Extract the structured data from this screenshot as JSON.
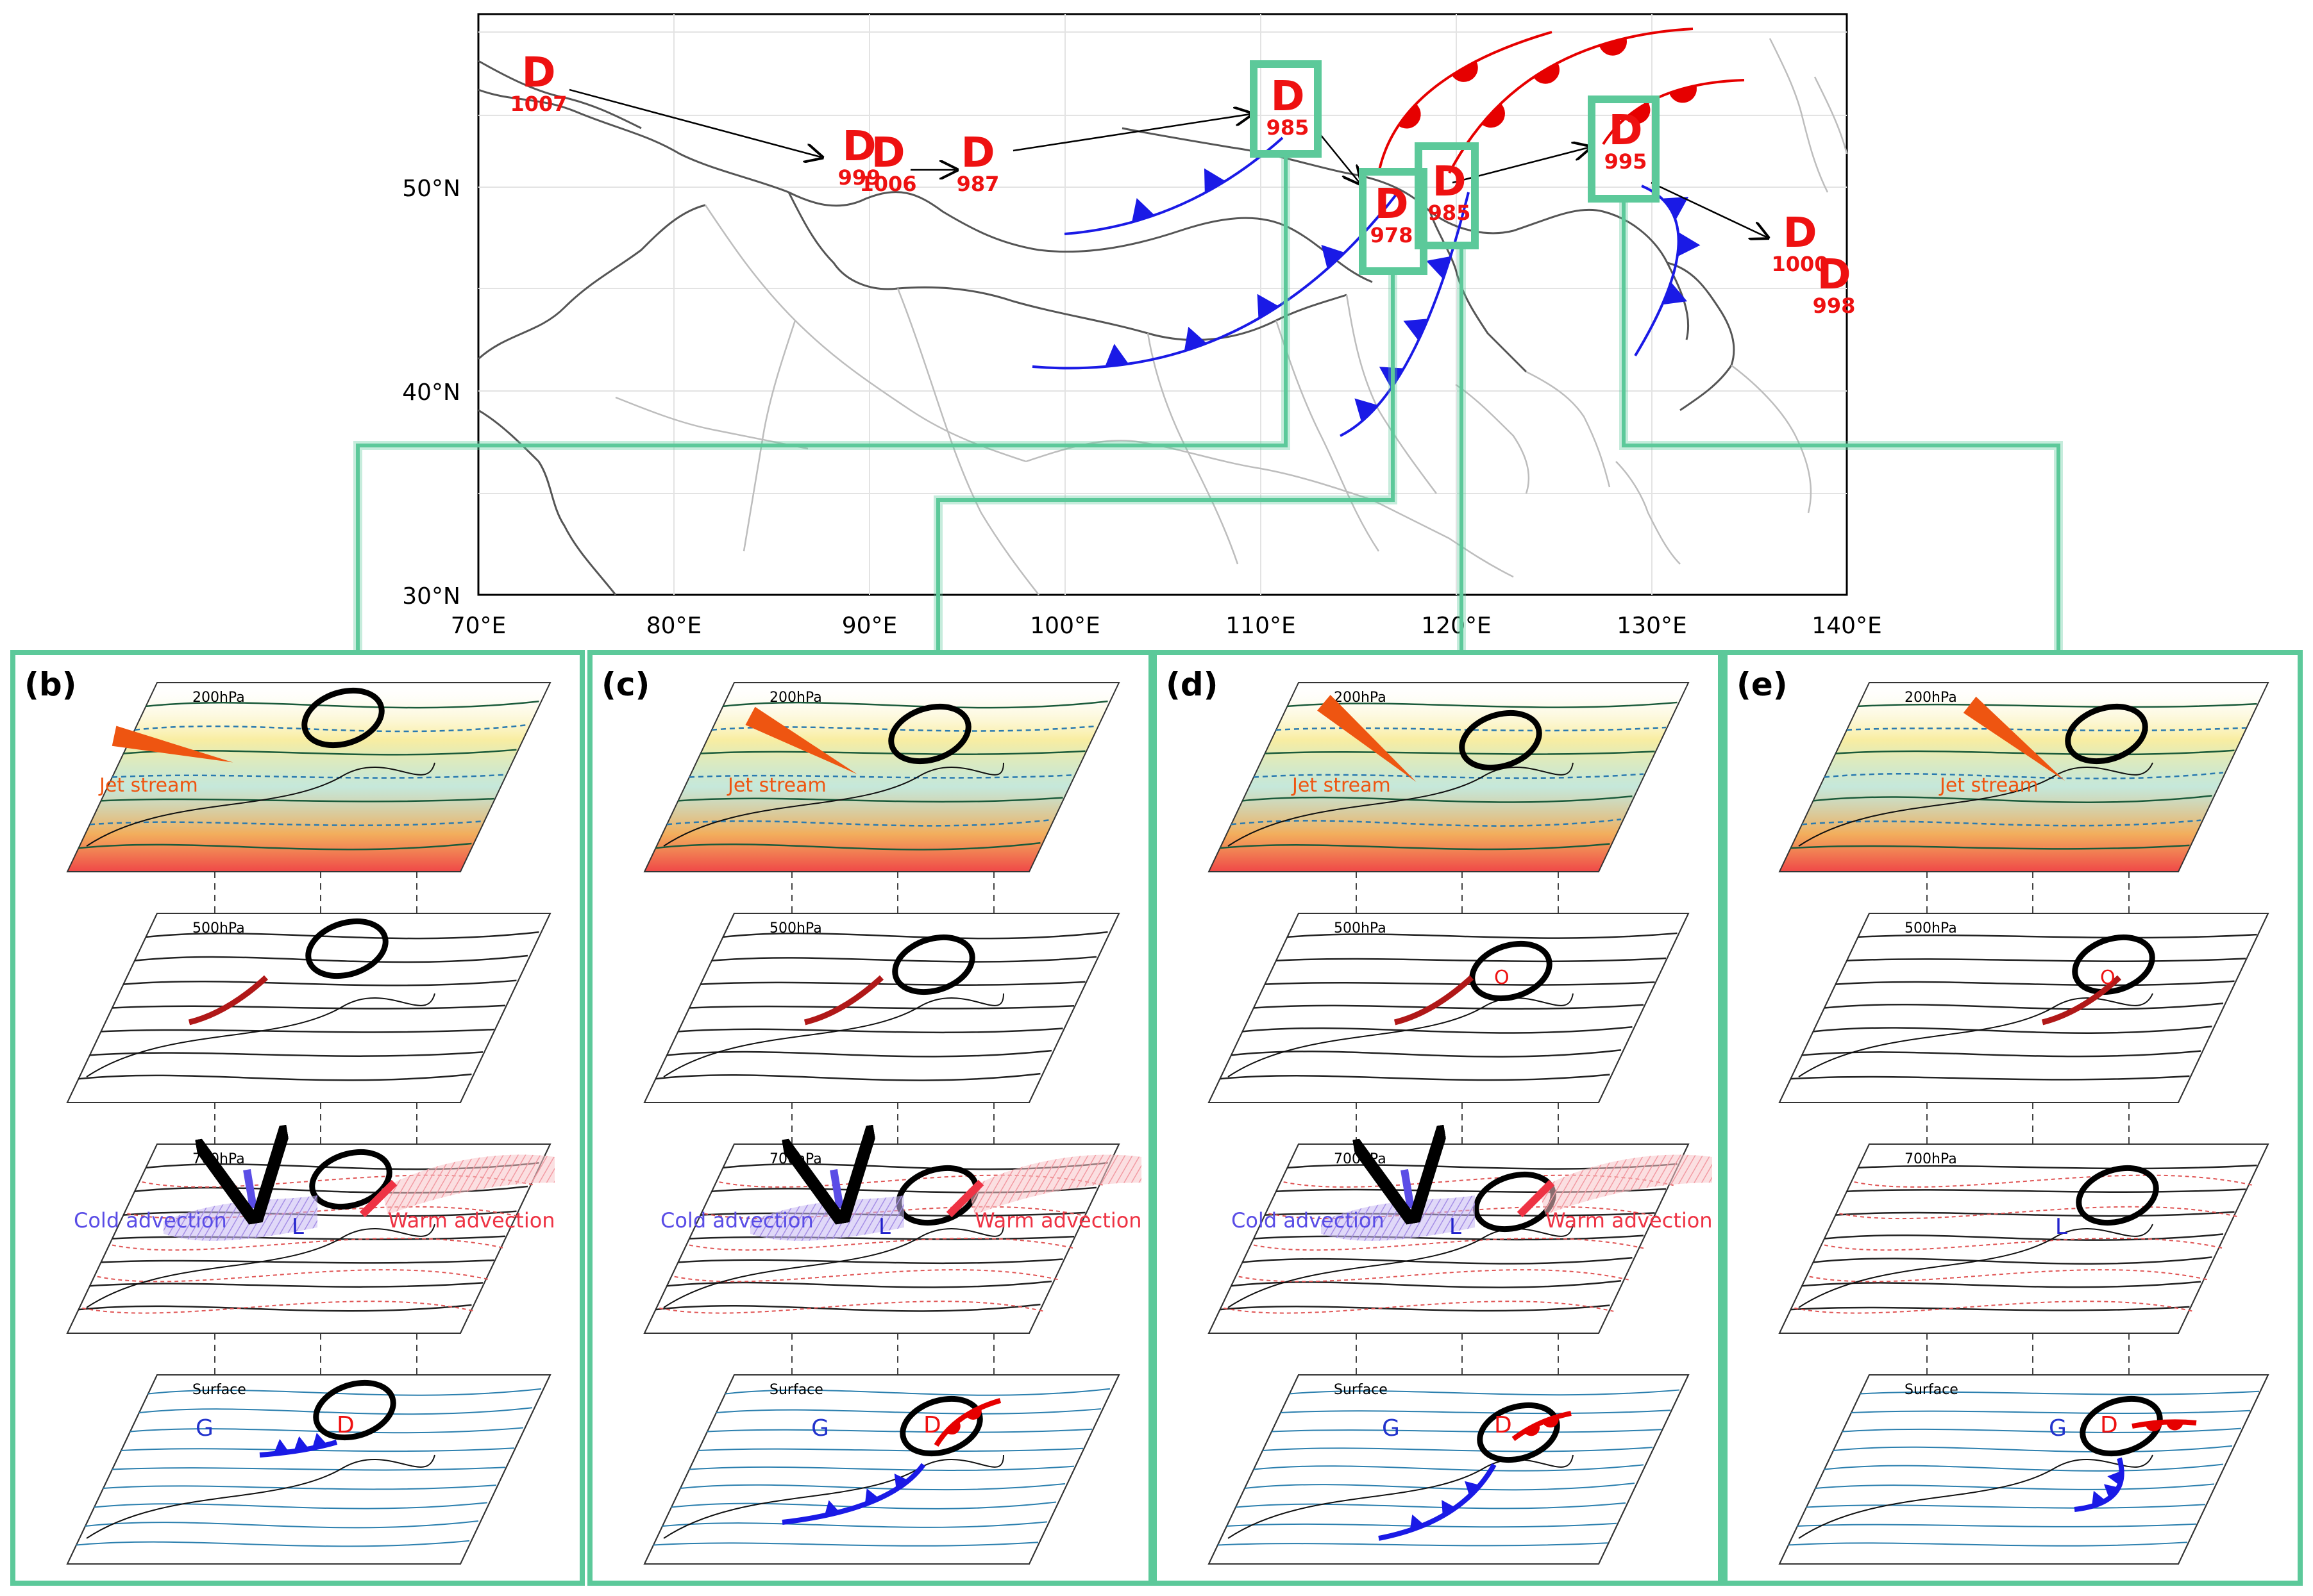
{
  "top_map": {
    "lat_labels": [
      "50°N",
      "40°N",
      "30°N"
    ],
    "lon_labels": [
      "70°E",
      "80°E",
      "90°E",
      "100°E",
      "110°E",
      "120°E",
      "130°E",
      "140°E"
    ],
    "lows": [
      {
        "symbol": "D",
        "value": "1007"
      },
      {
        "symbol": "D",
        "value": "999"
      },
      {
        "symbol": "D",
        "value": "1006"
      },
      {
        "symbol": "D",
        "value": "987"
      },
      {
        "symbol": "D",
        "value": "985"
      },
      {
        "symbol": "D",
        "value": "978"
      },
      {
        "symbol": "D",
        "value": "985"
      },
      {
        "symbol": "D",
        "value": "995"
      },
      {
        "symbol": "D",
        "value": "1000"
      },
      {
        "symbol": "D",
        "value": "998"
      }
    ]
  },
  "panels": [
    {
      "label": "(b)",
      "levels": [
        "200hPa",
        "500hPa",
        "700hPa",
        "Surface"
      ],
      "annotations": {
        "jet": "Jet stream",
        "cold": "Cold advection",
        "warm": "Warm advection",
        "low": "L",
        "high": "G",
        "sfc_low": "D",
        "mid_low": ""
      }
    },
    {
      "label": "(c)",
      "levels": [
        "200hPa",
        "500hPa",
        "700hPa",
        "Surface"
      ],
      "annotations": {
        "jet": "Jet stream",
        "cold": "Cold advection",
        "warm": "Warm advection",
        "low": "L",
        "high": "G",
        "sfc_low": "D",
        "mid_low": ""
      }
    },
    {
      "label": "(d)",
      "levels": [
        "200hPa",
        "500hPa",
        "700hPa",
        "Surface"
      ],
      "annotations": {
        "jet": "Jet stream",
        "cold": "Cold advection",
        "warm": "Warm advection",
        "low": "L",
        "high": "G",
        "sfc_low": "D",
        "mid_low": "O"
      }
    },
    {
      "label": "(e)",
      "levels": [
        "200hPa",
        "500hPa",
        "700hPa",
        "Surface"
      ],
      "annotations": {
        "jet": "Jet stream",
        "cold": "",
        "warm": "",
        "low": "L",
        "high": "G",
        "sfc_low": "D",
        "mid_low": "O"
      }
    }
  ],
  "colors": {
    "highlight": "#5cc99a",
    "cold_front": "#1a1ae6",
    "warm_front": "#e60000",
    "jet": "#ee5511",
    "cold_arrow": "#5a4de6",
    "warm_arrow": "#ee3344",
    "low_text": "#ee1111"
  }
}
